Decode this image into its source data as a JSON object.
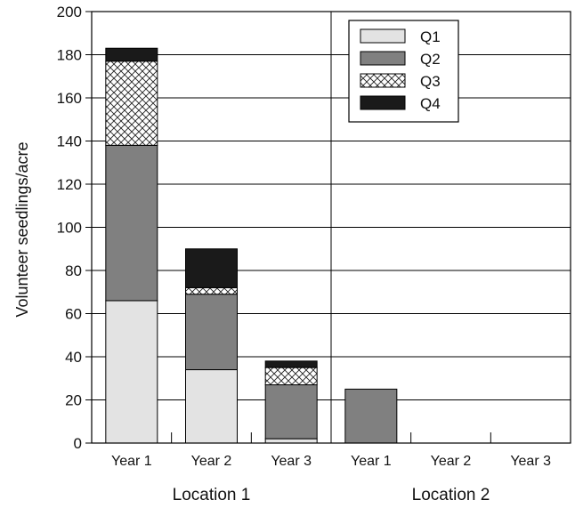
{
  "chart_data": {
    "type": "bar",
    "stacked": true,
    "ylabel": "Volunteer seedlings/acre",
    "xlabel": "",
    "ylim": [
      0,
      200
    ],
    "yticks": [
      0,
      20,
      40,
      60,
      80,
      100,
      120,
      140,
      160,
      180,
      200
    ],
    "grid": "horizontal",
    "legend_position": "top-right",
    "categories": [
      "Year 1",
      "Year 2",
      "Year 3",
      "Year 1",
      "Year 2",
      "Year 3"
    ],
    "groups": [
      {
        "label": "Location 1",
        "categories": [
          0,
          1,
          2
        ]
      },
      {
        "label": "Location 2",
        "categories": [
          3,
          4,
          5
        ]
      }
    ],
    "series": [
      {
        "name": "Q1",
        "values": [
          66,
          34,
          2,
          0,
          0,
          0
        ],
        "color": "#e3e3e3",
        "pattern": "solid"
      },
      {
        "name": "Q2",
        "values": [
          72,
          35,
          25,
          25,
          0,
          0
        ],
        "color": "#808080",
        "pattern": "solid"
      },
      {
        "name": "Q3",
        "values": [
          39,
          3,
          8,
          0,
          0,
          0
        ],
        "color": "#ffffff",
        "pattern": "crosshatch"
      },
      {
        "name": "Q4",
        "values": [
          6,
          18,
          3,
          0,
          0,
          0
        ],
        "color": "#1a1a1a",
        "pattern": "solid"
      }
    ]
  }
}
